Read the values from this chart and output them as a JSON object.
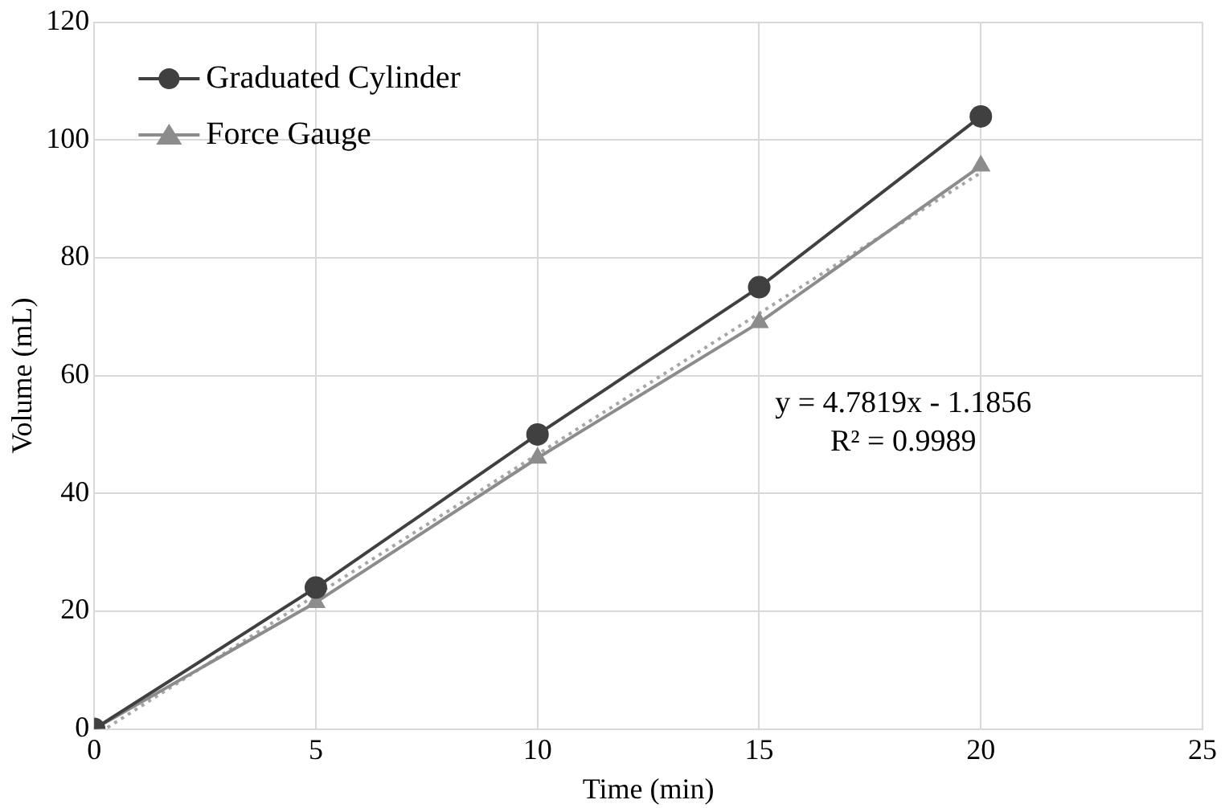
{
  "chart_data": {
    "type": "line",
    "xlabel": "Time (min)",
    "ylabel": "Volume (mL)",
    "x": [
      0,
      5,
      10,
      15,
      20
    ],
    "series": [
      {
        "name": "Graduated Cylinder",
        "color": "#404040",
        "marker": "circle",
        "values": [
          0,
          24,
          50,
          75,
          104
        ]
      },
      {
        "name": "Force Gauge",
        "color": "#8c8c8c",
        "marker": "triangle",
        "values": [
          0,
          21.5,
          46,
          69,
          95.6
        ]
      },
      {
        "type": "line",
        "color": "#a6a6a6",
        "marker": "none",
        "line_style": "dotted",
        "x": [
          0.3,
          20
        ],
        "values": [
          0.249,
          94.4524
        ]
      }
    ],
    "annotations": [
      "y = 4.7819x - 1.1856",
      "R² = 0.9989"
    ],
    "xlim": [
      0,
      25
    ],
    "xticks": [
      0,
      5,
      10,
      15,
      20,
      25
    ],
    "ylim": [
      0,
      120
    ],
    "yticks": [
      0,
      20,
      40,
      60,
      80,
      100,
      120
    ],
    "grid": true,
    "legend": "top left",
    "line_style": "solid"
  }
}
